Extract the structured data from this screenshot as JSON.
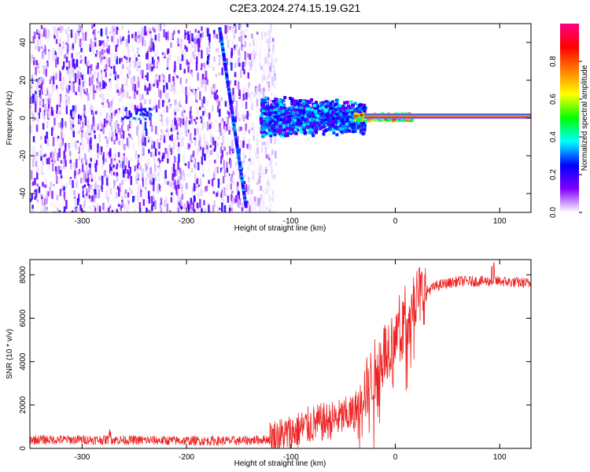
{
  "title": "C2E3.2024.274.15.19.G21",
  "chart_data": [
    {
      "type": "heatmap",
      "xlabel": "Height of straight line (km)",
      "ylabel": "Frequency (Hz)",
      "xlim": [
        -350,
        130
      ],
      "ylim": [
        -50,
        50
      ],
      "xticks": [
        -300,
        -200,
        -100,
        0,
        100
      ],
      "yticks": [
        -40,
        -20,
        0,
        20,
        40
      ],
      "colorbar": {
        "label": "Normalized spectral amplitude",
        "range": [
          0,
          1
        ],
        "ticks": [
          0.0,
          0.2,
          0.4,
          0.6,
          0.8
        ],
        "colors": [
          "#ffffff",
          "#8000ff",
          "#0000ff",
          "#00ffff",
          "#00ff00",
          "#ffff00",
          "#ff8000",
          "#ff0000",
          "#ff0080"
        ]
      },
      "features": {
        "noise_region_x": [
          -350,
          -125
        ],
        "diagonal_track": [
          [
            -168,
            48
          ],
          [
            -143,
            -46
          ]
        ],
        "cluster_x": [
          -130,
          -30
        ],
        "signal_line_x": [
          -30,
          130
        ],
        "signal_line_freq": 1
      }
    },
    {
      "type": "line",
      "xlabel": "Height of straight line (km)",
      "ylabel": "SNR (10 * v/v)",
      "xlim": [
        -350,
        130
      ],
      "ylim": [
        0,
        8700
      ],
      "xticks": [
        -300,
        -200,
        -100,
        0,
        100
      ],
      "yticks": [
        0,
        2000,
        4000,
        6000,
        8000
      ],
      "color": "#ee2222",
      "series": [
        {
          "x": [
            -350,
            -300,
            -250,
            -200,
            -150,
            -120,
            -100,
            -80,
            -60,
            -40,
            -30,
            -20,
            -10,
            0,
            10,
            20,
            40,
            60,
            80,
            100,
            130
          ],
          "values": [
            400,
            400,
            380,
            350,
            350,
            420,
            700,
            1100,
            1300,
            1600,
            2500,
            3500,
            4500,
            5200,
            6200,
            7000,
            7500,
            7700,
            7700,
            7700,
            7600
          ]
        }
      ]
    }
  ]
}
